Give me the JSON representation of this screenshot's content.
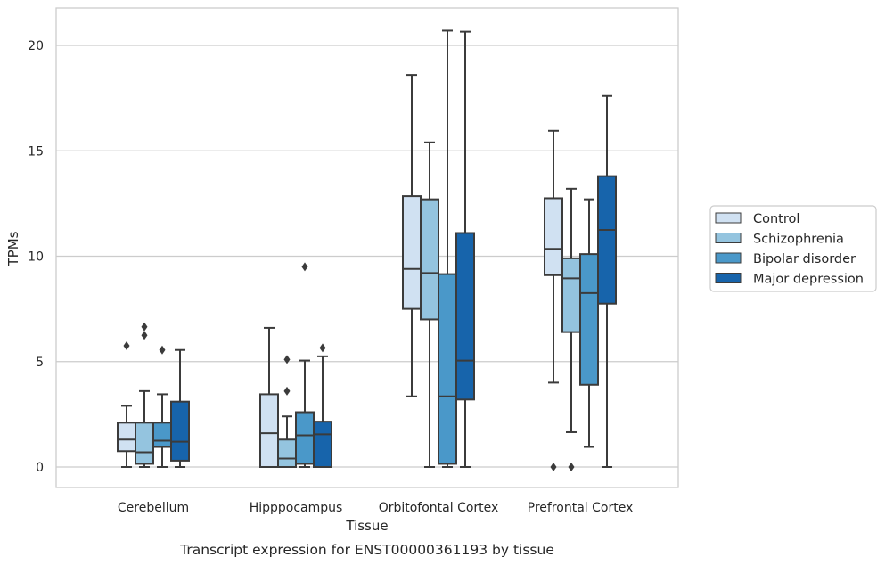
{
  "chart_data": {
    "type": "boxplot",
    "xlabel": "Tissue",
    "ylabel": "TPMs",
    "caption": "Transcript expression for ENST00000361193 by tissue",
    "ylim": [
      -1,
      21.8
    ],
    "yticks": [
      0,
      5,
      10,
      15,
      20
    ],
    "grid": "horizontal",
    "legend_position": "right",
    "categories": [
      "Cerebellum",
      "Hipppocampus",
      "Orbitofontal Cortex",
      "Prefrontal Cortex"
    ],
    "series": [
      {
        "name": "Control",
        "color": "#d0e1f2",
        "boxes": [
          {
            "whislo": 0.0,
            "q1": 0.75,
            "med": 1.3,
            "q3": 2.1,
            "whishi": 2.9,
            "fliers": [
              5.75
            ]
          },
          {
            "whislo": 0.0,
            "q1": 0.0,
            "med": 1.6,
            "q3": 3.45,
            "whishi": 6.6,
            "fliers": []
          },
          {
            "whislo": 3.35,
            "q1": 7.5,
            "med": 9.4,
            "q3": 12.85,
            "whishi": 18.6,
            "fliers": []
          },
          {
            "whislo": 4.0,
            "q1": 9.1,
            "med": 10.35,
            "q3": 12.75,
            "whishi": 15.95,
            "fliers": [
              0.0
            ]
          }
        ]
      },
      {
        "name": "Schizophrenia",
        "color": "#94c4df",
        "boxes": [
          {
            "whislo": 0.0,
            "q1": 0.15,
            "med": 0.7,
            "q3": 2.1,
            "whishi": 3.6,
            "fliers": [
              6.25,
              6.65
            ]
          },
          {
            "whislo": 0.0,
            "q1": 0.0,
            "med": 0.4,
            "q3": 1.3,
            "whishi": 2.4,
            "fliers": [
              3.6,
              5.1
            ]
          },
          {
            "whislo": 0.0,
            "q1": 7.0,
            "med": 9.2,
            "q3": 12.7,
            "whishi": 15.4,
            "fliers": []
          },
          {
            "whislo": 1.65,
            "q1": 6.4,
            "med": 8.95,
            "q3": 9.9,
            "whishi": 13.2,
            "fliers": [
              0.0
            ]
          }
        ]
      },
      {
        "name": "Bipolar disorder",
        "color": "#4a98c9",
        "boxes": [
          {
            "whislo": 0.0,
            "q1": 0.95,
            "med": 1.25,
            "q3": 2.1,
            "whishi": 3.45,
            "fliers": [
              5.55
            ]
          },
          {
            "whislo": 0.0,
            "q1": 0.15,
            "med": 1.5,
            "q3": 2.6,
            "whishi": 5.05,
            "fliers": [
              9.5
            ]
          },
          {
            "whislo": 0.0,
            "q1": 0.15,
            "med": 3.35,
            "q3": 9.15,
            "whishi": 20.7,
            "fliers": []
          },
          {
            "whislo": 0.95,
            "q1": 3.9,
            "med": 8.25,
            "q3": 10.1,
            "whishi": 12.7,
            "fliers": []
          }
        ]
      },
      {
        "name": "Major depression",
        "color": "#1764ab",
        "boxes": [
          {
            "whislo": 0.0,
            "q1": 0.3,
            "med": 1.2,
            "q3": 3.1,
            "whishi": 5.55,
            "fliers": []
          },
          {
            "whislo": 0.0,
            "q1": 0.0,
            "med": 1.55,
            "q3": 2.15,
            "whishi": 5.25,
            "fliers": [
              5.65
            ]
          },
          {
            "whislo": 0.0,
            "q1": 3.2,
            "med": 5.05,
            "q3": 11.1,
            "whishi": 20.65,
            "fliers": []
          },
          {
            "whislo": 0.0,
            "q1": 7.75,
            "med": 11.25,
            "q3": 13.8,
            "whishi": 17.6,
            "fliers": []
          }
        ]
      }
    ]
  }
}
